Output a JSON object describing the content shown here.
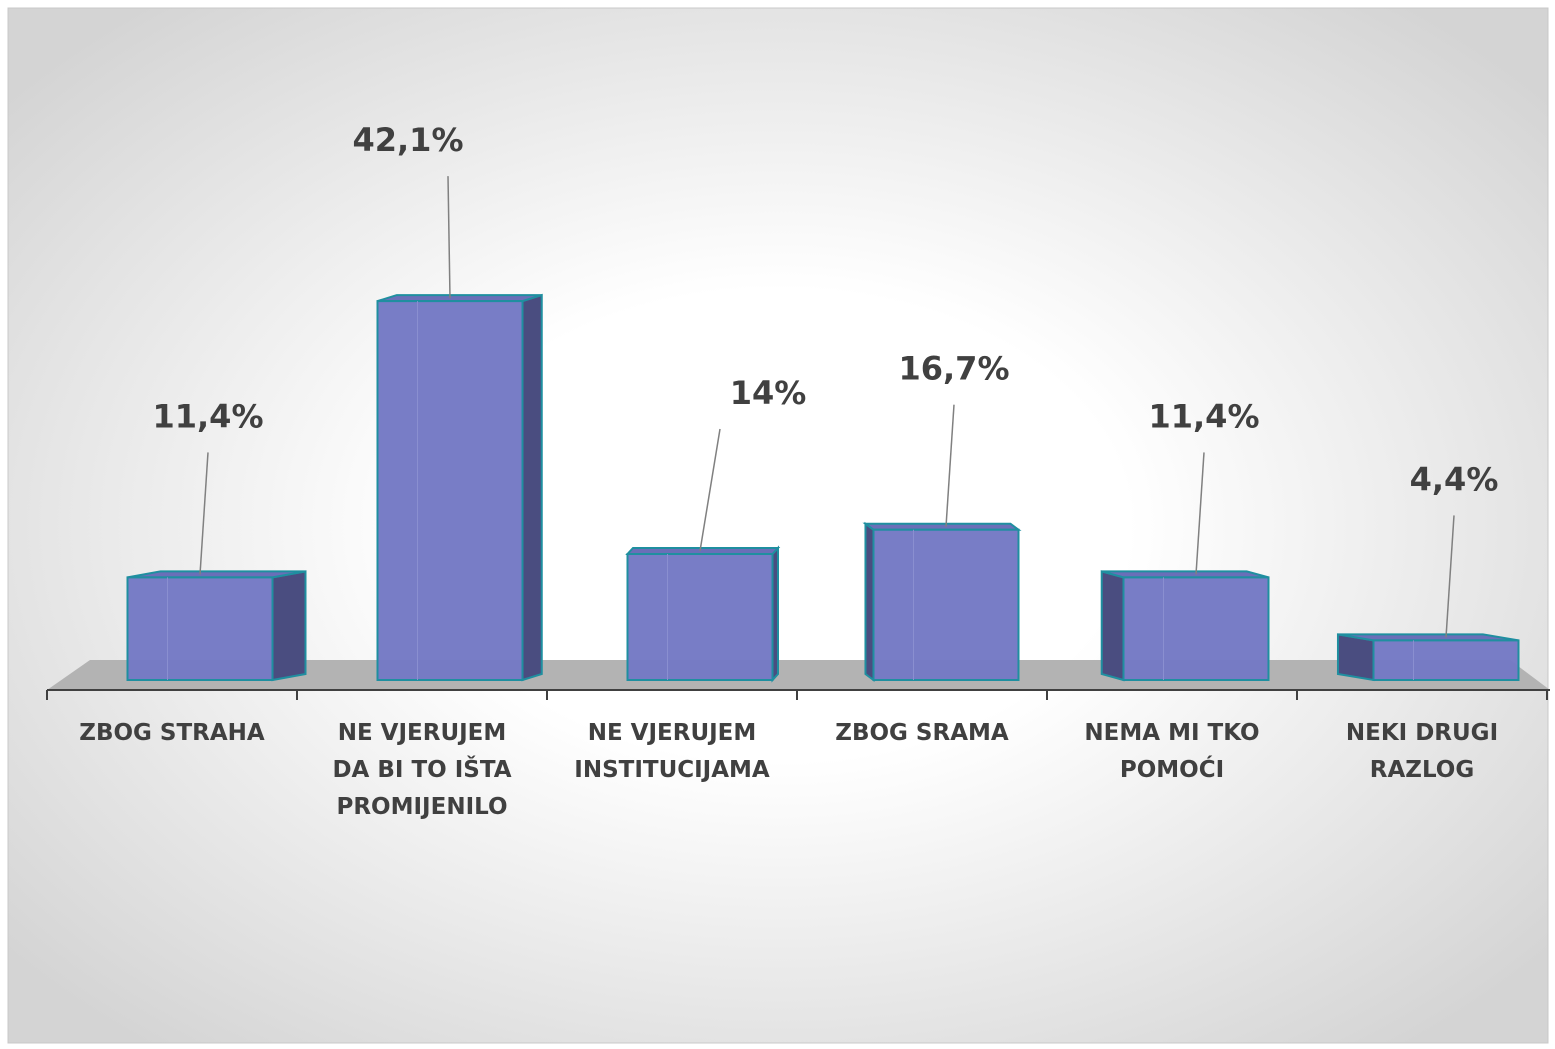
{
  "chart_data": {
    "type": "bar3d",
    "categories": [
      "ZBOG STRAHA",
      "NE VJERUJEM DA BI TO IŠTA PROMIJENILO",
      "NE VJERUJEM INSTITUCIJAMA",
      "ZBOG SRAMA",
      "NEMA MI TKO POMOĆI",
      "NEKI DRUGI RAZLOG"
    ],
    "values": [
      11.4,
      42.1,
      14,
      16.7,
      11.4,
      4.4
    ],
    "value_labels": [
      "11,4%",
      "42,1%",
      "14%",
      "16,7%",
      "11,4%",
      "4,4%"
    ],
    "color": "#7479c4"
  }
}
